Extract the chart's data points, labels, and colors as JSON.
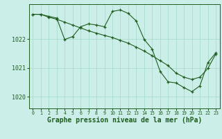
{
  "background_color": "#cceee8",
  "grid_color": "#aaddcc",
  "line_color": "#1e5c1e",
  "xlabel": "Graphe pression niveau de la mer (hPa)",
  "xlabel_fontsize": 7.0,
  "ylabel_ticks": [
    1020,
    1021,
    1022
  ],
  "xlim": [
    -0.5,
    23.5
  ],
  "ylim": [
    1019.6,
    1023.2
  ],
  "xticks": [
    0,
    1,
    2,
    3,
    4,
    5,
    6,
    7,
    8,
    9,
    10,
    11,
    12,
    13,
    14,
    15,
    16,
    17,
    18,
    19,
    20,
    21,
    22,
    23
  ],
  "series1_x": [
    0,
    1,
    2,
    3,
    4,
    5,
    6,
    7,
    8,
    9,
    10,
    11,
    12,
    13,
    14,
    15,
    16,
    17,
    18,
    19,
    20,
    21,
    22,
    23
  ],
  "series1_y": [
    1022.85,
    1022.85,
    1022.75,
    1022.68,
    1022.58,
    1022.48,
    1022.38,
    1022.28,
    1022.2,
    1022.12,
    1022.05,
    1021.95,
    1021.85,
    1021.72,
    1021.58,
    1021.42,
    1021.25,
    1021.08,
    1020.82,
    1020.68,
    1020.6,
    1020.68,
    1020.98,
    1021.48
  ],
  "series2_x": [
    0,
    1,
    2,
    3,
    4,
    5,
    6,
    7,
    8,
    9,
    10,
    11,
    12,
    13,
    14,
    15,
    16,
    17,
    18,
    19,
    20,
    21,
    22,
    23
  ],
  "series2_y": [
    1022.85,
    1022.85,
    1022.78,
    1022.72,
    1021.98,
    1022.08,
    1022.42,
    1022.52,
    1022.48,
    1022.42,
    1022.95,
    1023.0,
    1022.88,
    1022.62,
    1021.98,
    1021.65,
    1020.88,
    1020.52,
    1020.48,
    1020.32,
    1020.18,
    1020.38,
    1021.18,
    1021.52
  ]
}
